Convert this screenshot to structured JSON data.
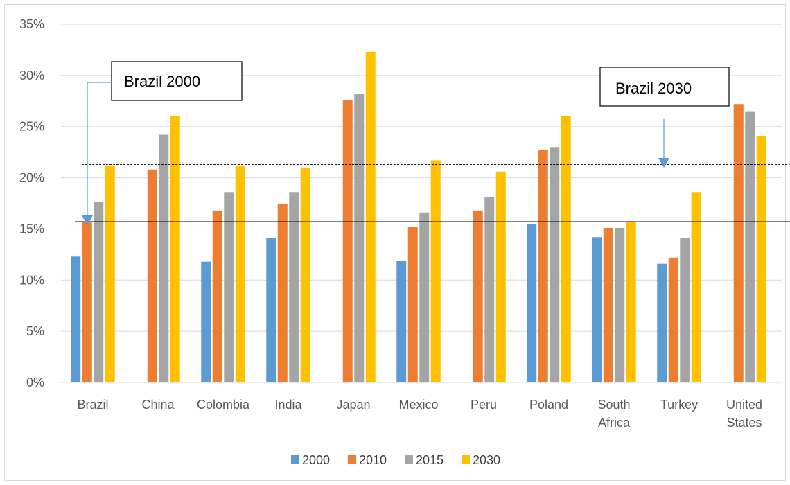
{
  "chart_data": {
    "type": "bar",
    "title": "",
    "xlabel": "",
    "ylabel": "",
    "categories": [
      [
        "Brazil"
      ],
      [
        "China"
      ],
      [
        "Colombia"
      ],
      [
        "India"
      ],
      [
        "Japan"
      ],
      [
        "Mexico"
      ],
      [
        "Peru"
      ],
      [
        "Poland"
      ],
      [
        "South",
        "Africa"
      ],
      [
        "Turkey"
      ],
      [
        "United",
        "States"
      ]
    ],
    "ylim": [
      0,
      0.35
    ],
    "yticks": [
      0,
      0.05,
      0.1,
      0.15,
      0.2,
      0.25,
      0.3,
      0.35
    ],
    "ytick_labels": [
      "0%",
      "5%",
      "10%",
      "15%",
      "20%",
      "25%",
      "30%",
      "35%"
    ],
    "grid": true,
    "legend_position": "bottom",
    "series": [
      {
        "name": "2000",
        "color": "#5b9bd5",
        "values": [
          0.123,
          null,
          0.118,
          0.141,
          null,
          0.119,
          null,
          0.155,
          0.142,
          0.116,
          null
        ]
      },
      {
        "name": "2010",
        "color": "#ed7d31",
        "values": [
          0.157,
          0.208,
          0.168,
          0.174,
          0.276,
          0.152,
          0.168,
          0.227,
          0.151,
          0.122,
          0.272
        ]
      },
      {
        "name": "2015",
        "color": "#a5a5a5",
        "values": [
          0.176,
          0.242,
          0.186,
          0.186,
          0.282,
          0.166,
          0.181,
          0.23,
          0.151,
          0.141,
          0.265
        ]
      },
      {
        "name": "2030",
        "color": "#ffc000",
        "values": [
          0.212,
          0.26,
          0.212,
          0.21,
          0.323,
          0.217,
          0.206,
          0.26,
          0.157,
          0.186,
          0.241
        ]
      }
    ],
    "reference_lines": [
      {
        "value": 0.157,
        "style": "solid"
      },
      {
        "value": 0.213,
        "style": "dashed"
      }
    ],
    "annotations": [
      {
        "text": "Brazil 2000"
      },
      {
        "text": "Brazil 2030"
      }
    ]
  }
}
